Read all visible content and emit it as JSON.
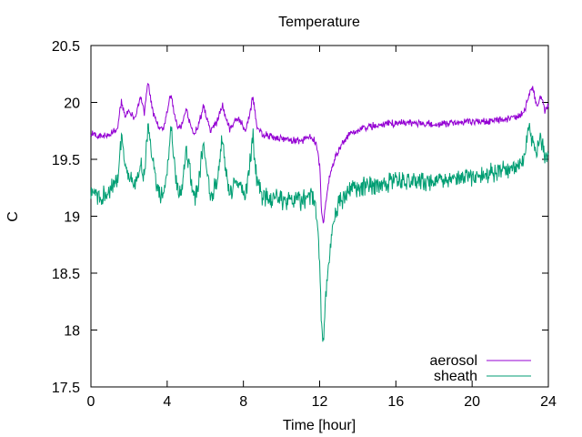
{
  "chart_data": {
    "type": "line",
    "title": "Temperature",
    "xlabel": "Time [hour]",
    "ylabel": "C",
    "xlim": [
      0,
      24
    ],
    "ylim": [
      17.5,
      20.5
    ],
    "xticks": [
      0,
      4,
      8,
      12,
      16,
      20,
      24
    ],
    "yticks": [
      17.5,
      18,
      18.5,
      19,
      19.5,
      20,
      20.5
    ],
    "grid": false,
    "legend_position": "bottom-right",
    "series": [
      {
        "name": "aerosol",
        "color": "#9400d3",
        "points": [
          [
            0.0,
            19.72
          ],
          [
            0.5,
            19.7
          ],
          [
            1.0,
            19.72
          ],
          [
            1.4,
            19.78
          ],
          [
            1.6,
            20.02
          ],
          [
            1.8,
            19.88
          ],
          [
            2.0,
            19.92
          ],
          [
            2.3,
            19.85
          ],
          [
            2.6,
            20.05
          ],
          [
            2.8,
            19.9
          ],
          [
            3.0,
            20.18
          ],
          [
            3.2,
            19.95
          ],
          [
            3.5,
            19.8
          ],
          [
            3.8,
            19.76
          ],
          [
            4.0,
            19.92
          ],
          [
            4.2,
            20.08
          ],
          [
            4.4,
            19.88
          ],
          [
            4.6,
            19.76
          ],
          [
            4.8,
            19.8
          ],
          [
            5.0,
            19.95
          ],
          [
            5.2,
            19.82
          ],
          [
            5.4,
            19.72
          ],
          [
            5.6,
            19.78
          ],
          [
            5.9,
            19.96
          ],
          [
            6.1,
            19.84
          ],
          [
            6.3,
            19.75
          ],
          [
            6.6,
            19.82
          ],
          [
            6.9,
            19.98
          ],
          [
            7.1,
            19.85
          ],
          [
            7.3,
            19.76
          ],
          [
            7.6,
            19.86
          ],
          [
            7.9,
            19.82
          ],
          [
            8.1,
            19.74
          ],
          [
            8.3,
            19.88
          ],
          [
            8.5,
            20.05
          ],
          [
            8.7,
            19.8
          ],
          [
            9.0,
            19.72
          ],
          [
            10.0,
            19.68
          ],
          [
            11.0,
            19.66
          ],
          [
            11.5,
            19.7
          ],
          [
            11.8,
            19.65
          ],
          [
            12.0,
            19.45
          ],
          [
            12.1,
            19.05
          ],
          [
            12.2,
            18.95
          ],
          [
            12.4,
            19.22
          ],
          [
            12.6,
            19.42
          ],
          [
            12.9,
            19.55
          ],
          [
            13.3,
            19.68
          ],
          [
            14.0,
            19.76
          ],
          [
            15.0,
            19.8
          ],
          [
            16.0,
            19.82
          ],
          [
            17.0,
            19.82
          ],
          [
            18.0,
            19.81
          ],
          [
            19.0,
            19.82
          ],
          [
            20.0,
            19.83
          ],
          [
            21.0,
            19.84
          ],
          [
            22.0,
            19.86
          ],
          [
            22.7,
            19.9
          ],
          [
            23.0,
            20.08
          ],
          [
            23.2,
            20.12
          ],
          [
            23.4,
            19.96
          ],
          [
            23.6,
            20.06
          ],
          [
            23.8,
            19.93
          ],
          [
            24.0,
            19.98
          ]
        ]
      },
      {
        "name": "sheath",
        "color": "#009e73",
        "points": [
          [
            0.0,
            19.2
          ],
          [
            0.5,
            19.18
          ],
          [
            1.0,
            19.22
          ],
          [
            1.4,
            19.35
          ],
          [
            1.6,
            19.7
          ],
          [
            1.8,
            19.45
          ],
          [
            2.0,
            19.32
          ],
          [
            2.3,
            19.28
          ],
          [
            2.6,
            19.45
          ],
          [
            2.8,
            19.35
          ],
          [
            3.0,
            19.8
          ],
          [
            3.2,
            19.5
          ],
          [
            3.5,
            19.22
          ],
          [
            3.8,
            19.15
          ],
          [
            4.0,
            19.4
          ],
          [
            4.2,
            19.78
          ],
          [
            4.4,
            19.42
          ],
          [
            4.6,
            19.2
          ],
          [
            4.8,
            19.22
          ],
          [
            5.0,
            19.62
          ],
          [
            5.2,
            19.38
          ],
          [
            5.4,
            19.15
          ],
          [
            5.6,
            19.22
          ],
          [
            5.9,
            19.65
          ],
          [
            6.1,
            19.36
          ],
          [
            6.3,
            19.16
          ],
          [
            6.6,
            19.3
          ],
          [
            6.9,
            19.68
          ],
          [
            7.1,
            19.35
          ],
          [
            7.3,
            19.17
          ],
          [
            7.6,
            19.32
          ],
          [
            7.9,
            19.25
          ],
          [
            8.1,
            19.16
          ],
          [
            8.3,
            19.4
          ],
          [
            8.5,
            19.7
          ],
          [
            8.7,
            19.3
          ],
          [
            9.0,
            19.18
          ],
          [
            10.0,
            19.14
          ],
          [
            11.0,
            19.13
          ],
          [
            11.5,
            19.18
          ],
          [
            11.8,
            19.1
          ],
          [
            12.0,
            18.6
          ],
          [
            12.1,
            18.05
          ],
          [
            12.2,
            17.85
          ],
          [
            12.3,
            18.3
          ],
          [
            12.5,
            18.6
          ],
          [
            12.7,
            18.95
          ],
          [
            13.0,
            19.1
          ],
          [
            13.5,
            19.22
          ],
          [
            14.0,
            19.26
          ],
          [
            15.0,
            19.28
          ],
          [
            16.0,
            19.3
          ],
          [
            17.0,
            19.3
          ],
          [
            18.0,
            19.31
          ],
          [
            19.0,
            19.33
          ],
          [
            20.0,
            19.35
          ],
          [
            21.0,
            19.38
          ],
          [
            22.0,
            19.42
          ],
          [
            22.7,
            19.48
          ],
          [
            23.0,
            19.8
          ],
          [
            23.2,
            19.62
          ],
          [
            23.4,
            19.55
          ],
          [
            23.6,
            19.7
          ],
          [
            23.8,
            19.5
          ],
          [
            24.0,
            19.55
          ]
        ]
      }
    ]
  }
}
